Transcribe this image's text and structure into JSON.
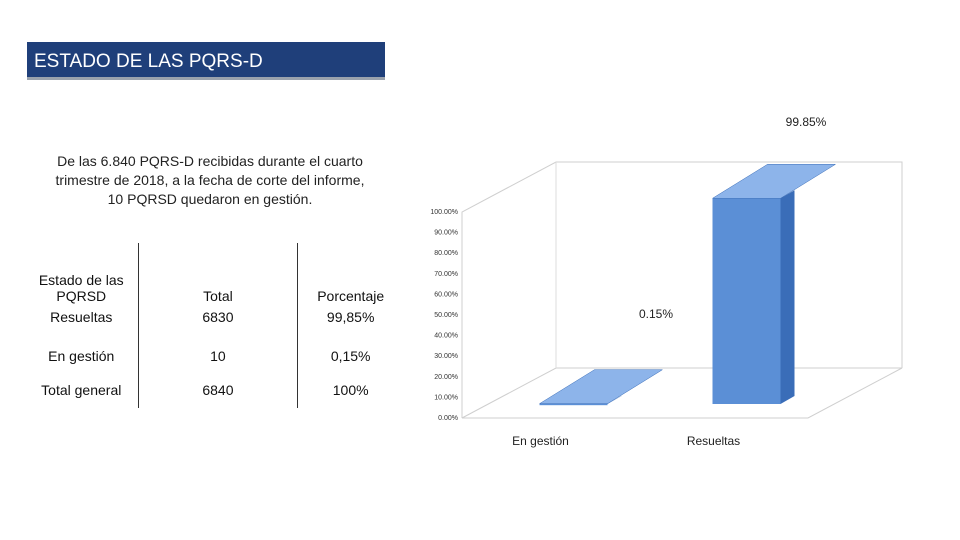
{
  "header": {
    "title": "ESTADO DE LAS PQRS-D"
  },
  "intro": {
    "line1": "De las 6.840 PQRS-D recibidas durante el cuarto",
    "line2": "trimestre de 2018, a la fecha de corte del informe,",
    "line3": "10 PQRSD quedaron en gestión."
  },
  "table": {
    "headers": [
      "Estado de las PQRSD",
      "Total",
      "Porcentaje"
    ],
    "rows": [
      [
        "Resueltas",
        "6830",
        "99,85%"
      ],
      [
        "En gestión",
        "10",
        "0,15%"
      ],
      [
        "Total general",
        "6840",
        "100%"
      ]
    ]
  },
  "colors": {
    "title_bar": "#1f3f7a",
    "bar": "#5b8fd6",
    "bar_top": "#8db4ea",
    "bar_side": "#3a6db8"
  },
  "chart_data": {
    "type": "bar",
    "three_d": true,
    "categories": [
      "En gestión",
      "Resueltas"
    ],
    "values": [
      0.15,
      99.85
    ],
    "data_labels": [
      "0.15%",
      "99.85%"
    ],
    "y_ticks": [
      "0.00%",
      "10.00%",
      "20.00%",
      "30.00%",
      "40.00%",
      "50.00%",
      "60.00%",
      "70.00%",
      "80.00%",
      "90.00%",
      "100.00%"
    ],
    "ylim": [
      0,
      100
    ],
    "grid": false,
    "legend": false
  }
}
